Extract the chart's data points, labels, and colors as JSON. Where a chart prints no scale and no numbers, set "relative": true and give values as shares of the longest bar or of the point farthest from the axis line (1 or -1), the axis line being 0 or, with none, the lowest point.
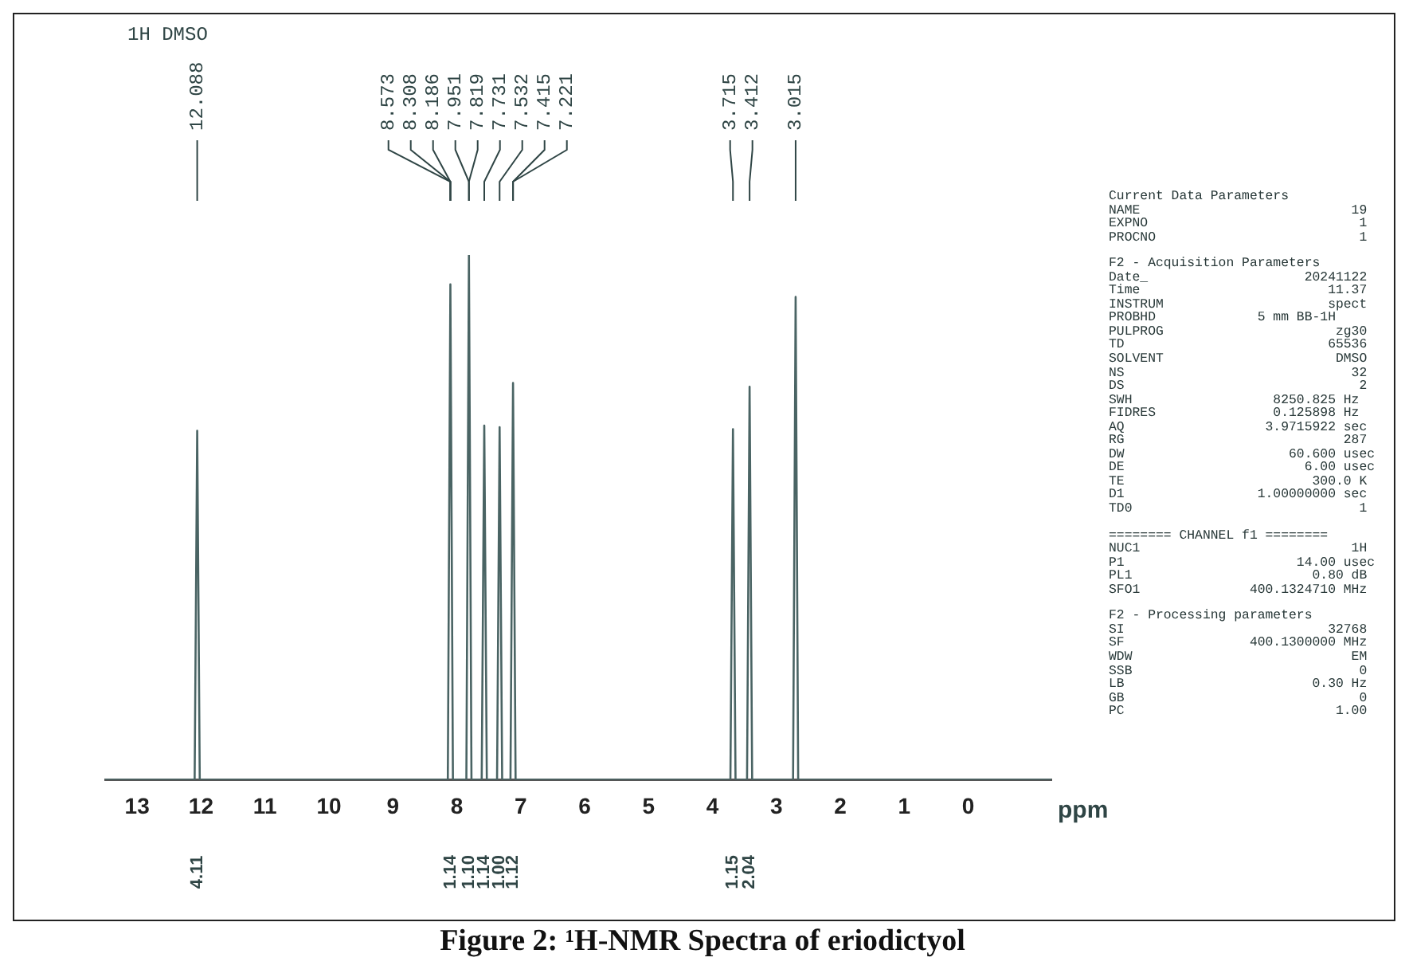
{
  "chart_data": {
    "type": "line",
    "title": "Figure 2: ¹H-NMR Spectra of eriodictyol",
    "subtitle": "1H DMSO",
    "xlabel": "ppm",
    "relative": true,
    "grid": false,
    "legend": false,
    "marker": "none",
    "line_style": "solid",
    "xlim": [
      13.5,
      -1.3
    ],
    "xticks": [
      13,
      12,
      11,
      10,
      9,
      8,
      7,
      6,
      5,
      4,
      3,
      2,
      1,
      0
    ],
    "series": [
      {
        "color": "#4a6464",
        "x": [
          13.5,
          12.1,
          12.06,
          12.02,
          8.14,
          8.1,
          8.06,
          7.85,
          7.81,
          7.77,
          7.61,
          7.57,
          7.53,
          7.37,
          7.33,
          7.29,
          7.16,
          7.12,
          7.08,
          3.72,
          3.68,
          3.64,
          3.46,
          3.42,
          3.38,
          2.74,
          2.7,
          2.66,
          -1.3
        ],
        "values": [
          0,
          0,
          0.665,
          0,
          0,
          0.944,
          0,
          0,
          1,
          0,
          0,
          0.675,
          0,
          0,
          0.672,
          0,
          0,
          0.756,
          0,
          0,
          0.668,
          0,
          0,
          0.749,
          0,
          0,
          0.92,
          0,
          0
        ]
      }
    ],
    "annotations": [
      "12.088",
      "8.573",
      "8.308",
      "8.186",
      "7.951",
      "7.819",
      "7.731",
      "7.532",
      "7.415",
      "7.221",
      "3.715",
      "3.412",
      "3.015",
      "4.11",
      "1.14",
      "1.10",
      "1.14",
      "1.00",
      "1.12",
      "1.15",
      "2.04",
      "Current Data Parameters",
      "NAME                           19",
      "EXPNO                           1",
      "PROCNO                          1",
      "F2 - Acquisition Parameters",
      "Date_                    20241122",
      "Time                        11.37",
      "INSTRUM                     spect",
      "PROBHD             5 mm BB-1H",
      "PULPROG                      zg30",
      "TD                          65536",
      "SOLVENT                      DMSO",
      "NS                             32",
      "DS                              2",
      "SWH                  8250.825 Hz",
      "FIDRES               0.125898 Hz",
      "AQ                  3.9715922 sec",
      "RG                            287",
      "DW                     60.600 usec",
      "DE                       6.00 usec",
      "TE                        300.0 K",
      "D1                 1.00000000 sec",
      "TD0                             1",
      "======== CHANNEL f1 ========",
      "NUC1                           1H",
      "P1                      14.00 usec",
      "PL1                       0.80 dB",
      "SFO1              400.1324710 MHz",
      "F2 - Processing parameters",
      "SI                          32768",
      "SF                400.1300000 MHz",
      "WDW                            EM",
      "SSB                             0",
      "LB                        0.30 Hz",
      "GB                              0",
      "PC                           1.00"
    ]
  }
}
